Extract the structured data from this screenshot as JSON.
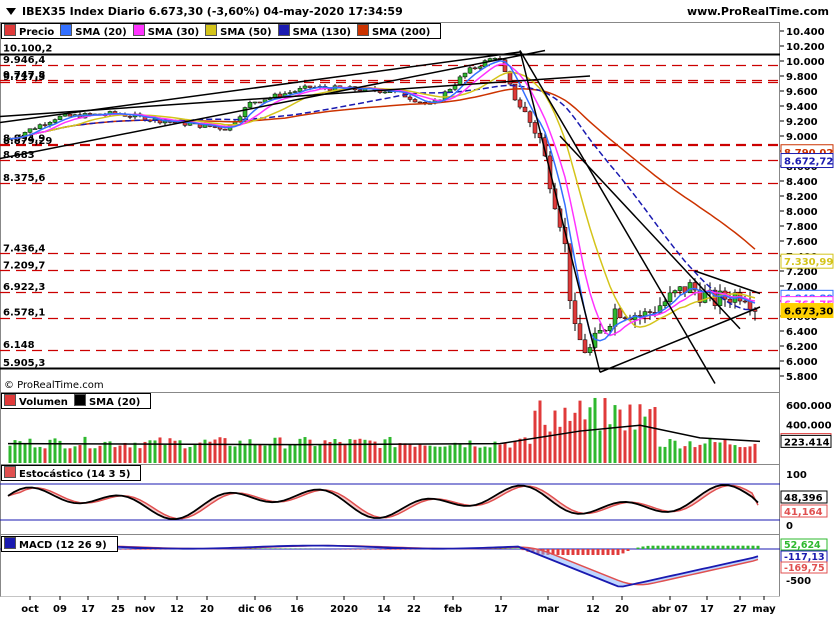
{
  "header": {
    "title": "IBEX35 Index Diario 6.673,30 (-3,60%) 04-may-2020 17:34:59",
    "site": "www.ProRealTime.com",
    "watermark": "© ProRealTime.com"
  },
  "colors": {
    "price_up": "#2eb82e",
    "price_down": "#e03a3a",
    "sma20": "#3370ff",
    "sma30": "#ff33ff",
    "sma50": "#d4c41a",
    "sma130": "#1a1ab0",
    "sma200": "#cc3300",
    "level_line": "#cc0000",
    "trend_line": "#000000",
    "stoch_k": "#000000",
    "stoch_d": "#e05050",
    "macd": "#1a1ab0",
    "signal": "#e05050"
  },
  "price_panel": {
    "legend": [
      {
        "label": "Precio",
        "color": "#e03a3a"
      },
      {
        "label": "SMA (20)",
        "color": "#3370ff"
      },
      {
        "label": "SMA (30)",
        "color": "#ff33ff"
      },
      {
        "label": "SMA (50)",
        "color": "#d4c41a"
      },
      {
        "label": "SMA (130)",
        "color": "#1a1ab0"
      },
      {
        "label": "SMA (200)",
        "color": "#cc3300"
      }
    ],
    "level_labels": [
      {
        "text": "10.100,2",
        "v": 10100,
        "solid": true
      },
      {
        "text": "9.946,4",
        "v": 9946
      },
      {
        "text": "9.747,8",
        "v": 9748
      },
      {
        "text": "9.717,3",
        "v": 9717
      },
      {
        "text": "8.894,9",
        "v": 8895,
        "label_v": 8900
      },
      {
        "text": "8.879,29",
        "v": 8879,
        "label_v": 8870
      },
      {
        "text": "8.683",
        "v": 8683
      },
      {
        "text": "8.375,6",
        "v": 8376
      },
      {
        "text": "7.436,4",
        "v": 7436
      },
      {
        "text": "7.209,7",
        "v": 7210
      },
      {
        "text": "6.922,3",
        "v": 6922
      },
      {
        "text": "6.578,1",
        "v": 6578
      },
      {
        "text": "6.148",
        "v": 6148
      },
      {
        "text": "5.905,3",
        "v": 5905,
        "solid": true
      }
    ],
    "y_ticks": [
      "10.400",
      "10.200",
      "10.000",
      "9.800",
      "9.600",
      "9.400",
      "9.200",
      "9.000",
      "8.800",
      "8.600",
      "8.400",
      "8.200",
      "8.000",
      "7.800",
      "7.600",
      "7.400",
      "7.200",
      "7.000",
      "6.800",
      "6.600",
      "6.400",
      "6.200",
      "6.000",
      "5.800"
    ],
    "value_tags": [
      {
        "text": "8.790,02",
        "v": 8790,
        "color": "#cc3300"
      },
      {
        "text": "8.672,72",
        "v": 8673,
        "color": "#1a1ab0"
      },
      {
        "text": "7.330,99",
        "v": 7331,
        "color": "#d4c41a"
      },
      {
        "text": "6.848,89",
        "v": 6849,
        "color": "#3370ff"
      },
      {
        "text": "6.764,75",
        "v": 6765,
        "color": "#ff33ff"
      },
      {
        "text": "6.673,30",
        "v": 6673,
        "color": "#ffd000",
        "bold": true
      }
    ]
  },
  "volume_panel": {
    "legend": [
      {
        "label": "Volumen",
        "color": "#e03a3a"
      },
      {
        "label": "SMA (20)",
        "color": "#000000"
      }
    ],
    "y_ticks": [
      "600.000",
      "400.000"
    ],
    "value_tags": [
      {
        "text": "241.555",
        "color": "#e03a3a"
      },
      {
        "text": "223.414",
        "color": "#000000"
      }
    ]
  },
  "stoch_panel": {
    "legend": [
      {
        "label": "Estocástico (14 3 5)",
        "color": "#e05050"
      }
    ],
    "y_ticks": [
      "100",
      "0"
    ],
    "value_tags": [
      {
        "text": "48,396",
        "color": "#000000"
      },
      {
        "text": "41,164",
        "color": "#e05050"
      }
    ]
  },
  "macd_panel": {
    "legend": [
      {
        "label": "MACD (12 26 9)",
        "color": "#1a1ab0"
      }
    ],
    "y_ticks": [
      "-500"
    ],
    "value_tags": [
      {
        "text": "52,624",
        "color": "#2eb82e"
      },
      {
        "text": "-117,13",
        "color": "#1a1ab0"
      },
      {
        "text": "-169,75",
        "color": "#e05050"
      }
    ]
  },
  "x_axis": [
    "oct",
    "09",
    "17",
    "25",
    "nov",
    "12",
    "20",
    "dic 06",
    "16",
    "2020",
    "14",
    "22",
    "feb",
    "17",
    "mar",
    "12",
    "20",
    "abr 07",
    "17",
    "27",
    "may"
  ],
  "chart_data": {
    "type": "candlestick",
    "title": "IBEX35 Index Diario 6.673,30 (-3,60%) 04-may-2020 17:34:59",
    "date_range": [
      "2019-10-01",
      "2020-05-04"
    ],
    "close_path": [
      {
        "date": "2019-10-01",
        "close": 8950
      },
      {
        "date": "2019-10-15",
        "close": 9250
      },
      {
        "date": "2019-11-01",
        "close": 9300
      },
      {
        "date": "2019-11-15",
        "close": 9200
      },
      {
        "date": "2019-12-03",
        "close": 9100
      },
      {
        "date": "2019-12-10",
        "close": 9450
      },
      {
        "date": "2019-12-27",
        "close": 9650
      },
      {
        "date": "2020-01-20",
        "close": 9600
      },
      {
        "date": "2020-01-31",
        "close": 9400
      },
      {
        "date": "2020-02-10",
        "close": 9850
      },
      {
        "date": "2020-02-19",
        "close": 10080
      },
      {
        "date": "2020-02-24",
        "close": 9500
      },
      {
        "date": "2020-03-02",
        "close": 9000
      },
      {
        "date": "2020-03-09",
        "close": 7700
      },
      {
        "date": "2020-03-12",
        "close": 6390
      },
      {
        "date": "2020-03-16",
        "close": 6100
      },
      {
        "date": "2020-03-24",
        "close": 6700
      },
      {
        "date": "2020-04-01",
        "close": 6600
      },
      {
        "date": "2020-04-14",
        "close": 7000
      },
      {
        "date": "2020-04-21",
        "close": 6800
      },
      {
        "date": "2020-04-30",
        "close": 6922
      },
      {
        "date": "2020-05-04",
        "close": 6673
      }
    ],
    "last": {
      "close": 6673.3,
      "change_pct": -3.6
    },
    "sma_last": {
      "SMA20": 6848.89,
      "SMA30": 6764.75,
      "SMA50": 7330.99,
      "SMA130": 8672.72,
      "SMA200": 8790.02
    },
    "volume_last": {
      "volume": 241555,
      "sma20": 223414
    },
    "stochastic_last": {
      "k": 48.396,
      "d": 41.164
    },
    "macd_last": {
      "histogram": 52.624,
      "macd": -117.13,
      "signal": -169.75
    },
    "ylim": [
      5700,
      10500
    ]
  }
}
